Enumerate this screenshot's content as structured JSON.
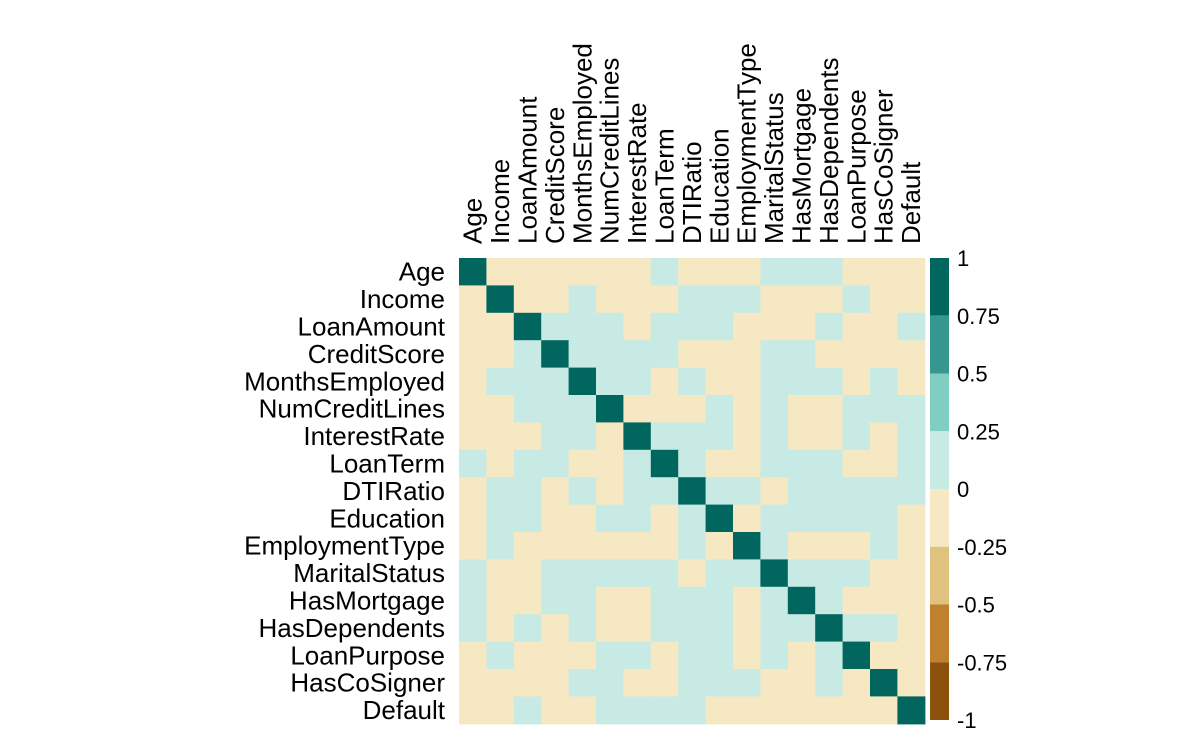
{
  "chart_data": {
    "type": "heatmap",
    "variables": [
      "Age",
      "Income",
      "LoanAmount",
      "CreditScore",
      "MonthsEmployed",
      "NumCreditLines",
      "InterestRate",
      "LoanTerm",
      "DTIRatio",
      "Education",
      "EmploymentType",
      "MaritalStatus",
      "HasMortgage",
      "HasDependents",
      "LoanPurpose",
      "HasCoSigner",
      "Default"
    ],
    "matrix": [
      [
        1,
        -0.1,
        -0.1,
        -0.1,
        -0.1,
        -0.1,
        -0.1,
        0.1,
        -0.1,
        -0.1,
        -0.1,
        0.1,
        0.1,
        0.1,
        -0.1,
        -0.1,
        -0.1
      ],
      [
        -0.1,
        1,
        -0.1,
        -0.1,
        0.1,
        -0.1,
        -0.1,
        -0.1,
        0.1,
        0.1,
        0.1,
        -0.1,
        -0.1,
        -0.1,
        0.1,
        -0.1,
        -0.1
      ],
      [
        -0.1,
        -0.1,
        1,
        0.1,
        0.1,
        0.1,
        -0.1,
        0.1,
        0.1,
        0.1,
        -0.1,
        -0.1,
        -0.1,
        0.1,
        -0.1,
        -0.1,
        0.1
      ],
      [
        -0.1,
        -0.1,
        0.1,
        1,
        0.1,
        0.1,
        0.1,
        0.1,
        -0.1,
        -0.1,
        -0.1,
        0.1,
        0.1,
        -0.1,
        -0.1,
        -0.1,
        -0.1
      ],
      [
        -0.1,
        0.1,
        0.1,
        0.1,
        1,
        0.1,
        0.1,
        -0.1,
        0.1,
        -0.1,
        -0.1,
        0.1,
        0.1,
        0.1,
        -0.1,
        0.1,
        -0.1
      ],
      [
        -0.1,
        -0.1,
        0.1,
        0.1,
        0.1,
        1,
        -0.1,
        -0.1,
        -0.1,
        0.1,
        -0.1,
        0.1,
        -0.1,
        -0.1,
        0.1,
        0.1,
        0.1
      ],
      [
        -0.1,
        -0.1,
        -0.1,
        0.1,
        0.1,
        -0.1,
        1,
        0.1,
        0.1,
        0.1,
        -0.1,
        0.1,
        -0.1,
        -0.1,
        0.1,
        -0.1,
        0.1
      ],
      [
        0.1,
        -0.1,
        0.1,
        0.1,
        -0.1,
        -0.1,
        0.1,
        1,
        0.1,
        -0.1,
        -0.1,
        0.1,
        0.1,
        0.1,
        -0.1,
        -0.1,
        0.1
      ],
      [
        -0.1,
        0.1,
        0.1,
        -0.1,
        0.1,
        -0.1,
        0.1,
        0.1,
        1,
        0.1,
        0.1,
        -0.1,
        0.1,
        0.1,
        0.1,
        0.1,
        0.1
      ],
      [
        -0.1,
        0.1,
        0.1,
        -0.1,
        -0.1,
        0.1,
        0.1,
        -0.1,
        0.1,
        1,
        -0.1,
        0.1,
        0.1,
        0.1,
        0.1,
        0.1,
        -0.1
      ],
      [
        -0.1,
        0.1,
        -0.1,
        -0.1,
        -0.1,
        -0.1,
        -0.1,
        -0.1,
        0.1,
        -0.1,
        1,
        0.1,
        -0.1,
        -0.1,
        -0.1,
        0.1,
        -0.1
      ],
      [
        0.1,
        -0.1,
        -0.1,
        0.1,
        0.1,
        0.1,
        0.1,
        0.1,
        -0.1,
        0.1,
        0.1,
        1,
        0.1,
        0.1,
        0.1,
        -0.1,
        -0.1
      ],
      [
        0.1,
        -0.1,
        -0.1,
        0.1,
        0.1,
        -0.1,
        -0.1,
        0.1,
        0.1,
        0.1,
        -0.1,
        0.1,
        1,
        0.1,
        -0.1,
        -0.1,
        -0.1
      ],
      [
        0.1,
        -0.1,
        0.1,
        -0.1,
        0.1,
        -0.1,
        -0.1,
        0.1,
        0.1,
        0.1,
        -0.1,
        0.1,
        0.1,
        1,
        0.1,
        0.1,
        -0.1
      ],
      [
        -0.1,
        0.1,
        -0.1,
        -0.1,
        -0.1,
        0.1,
        0.1,
        -0.1,
        0.1,
        0.1,
        -0.1,
        0.1,
        -0.1,
        0.1,
        1,
        -0.1,
        -0.1
      ],
      [
        -0.1,
        -0.1,
        -0.1,
        -0.1,
        0.1,
        0.1,
        -0.1,
        -0.1,
        0.1,
        0.1,
        0.1,
        -0.1,
        -0.1,
        0.1,
        -0.1,
        1,
        -0.1
      ],
      [
        -0.1,
        -0.1,
        0.1,
        -0.1,
        -0.1,
        0.1,
        0.1,
        0.1,
        0.1,
        -0.1,
        -0.1,
        -0.1,
        -0.1,
        -0.1,
        -0.1,
        -0.1,
        1
      ]
    ],
    "colorbar": {
      "ticks": [
        "1",
        "0.75",
        "0.5",
        "0.25",
        "0",
        "-0.25",
        "-0.5",
        "-0.75",
        "-1"
      ],
      "bands": [
        {
          "from": 0.75,
          "to": 1,
          "color": "#01665E"
        },
        {
          "from": 0.5,
          "to": 0.75,
          "color": "#35978F"
        },
        {
          "from": 0.25,
          "to": 0.5,
          "color": "#80CDC1"
        },
        {
          "from": 0,
          "to": 0.25,
          "color": "#C7EAE5"
        },
        {
          "from": -0.25,
          "to": 0,
          "color": "#F6E8C3"
        },
        {
          "from": -0.5,
          "to": -0.25,
          "color": "#DFC27D"
        },
        {
          "from": -0.75,
          "to": -0.5,
          "color": "#BF812D"
        },
        {
          "from": -1,
          "to": -0.75,
          "color": "#8C510A"
        }
      ]
    },
    "title": "",
    "xlabel": "",
    "ylabel": ""
  }
}
